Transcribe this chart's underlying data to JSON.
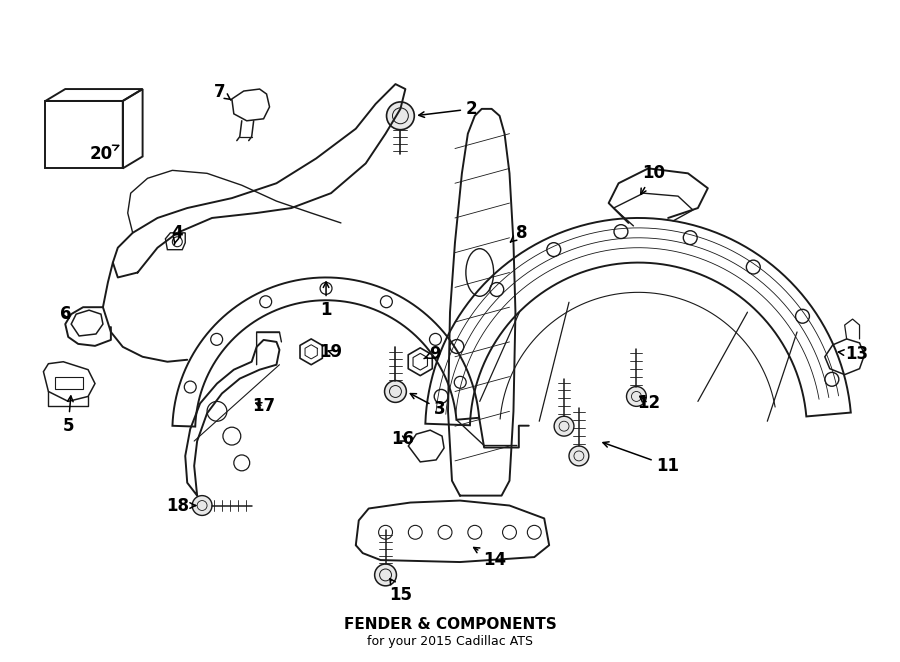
{
  "title": "FENDER & COMPONENTS",
  "subtitle": "for your 2015 Cadillac ATS",
  "background_color": "#ffffff",
  "line_color": "#1a1a1a",
  "text_color": "#000000",
  "fig_width": 9.0,
  "fig_height": 6.62,
  "dpi": 100
}
